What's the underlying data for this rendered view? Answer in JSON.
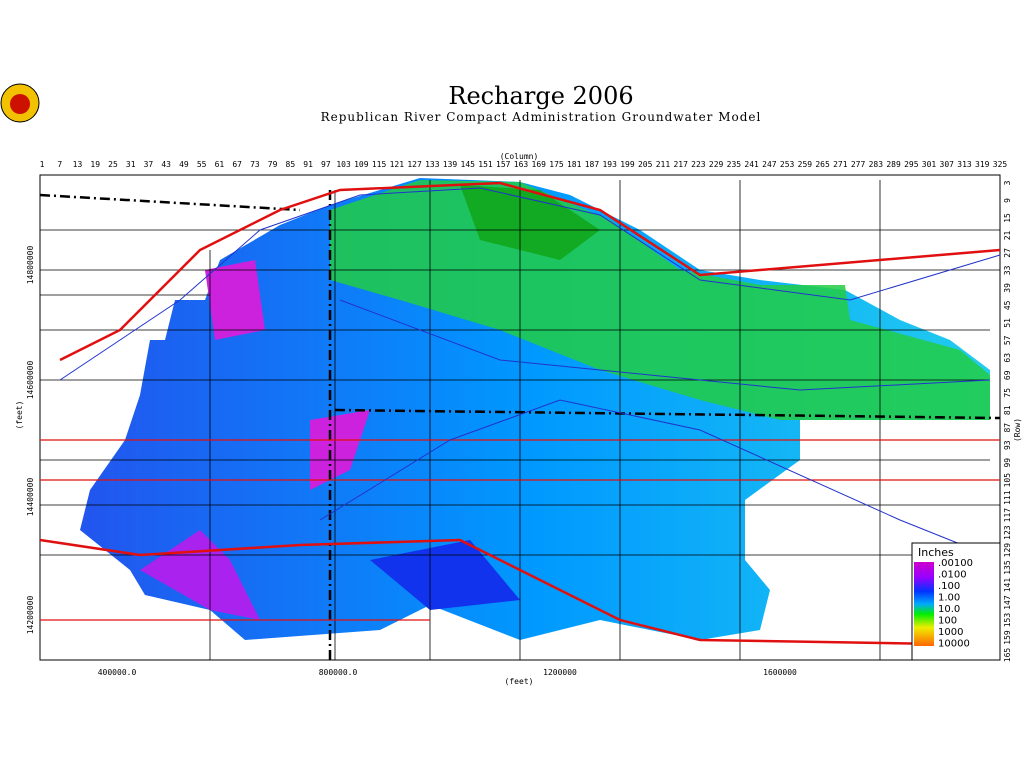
{
  "header": {
    "title": "Recharge 2006",
    "subtitle": "Republican River Compact Administration Groundwater Model"
  },
  "axes": {
    "column_label": "(Column)",
    "row_label": "(Row)",
    "x_label": "(feet)",
    "y_label": "(feet)",
    "column_ticks": [
      "1",
      "7",
      "13",
      "19",
      "25",
      "31",
      "37",
      "43",
      "49",
      "55",
      "61",
      "67",
      "73",
      "79",
      "85",
      "91",
      "97",
      "103",
      "109",
      "115",
      "121",
      "127",
      "133",
      "139",
      "145",
      "151",
      "157",
      "163",
      "169",
      "175",
      "181",
      "187",
      "193",
      "199",
      "205",
      "211",
      "217",
      "223",
      "229",
      "235",
      "241",
      "247",
      "253",
      "259",
      "265",
      "271",
      "277",
      "283",
      "289",
      "295",
      "301",
      "307",
      "313",
      "319",
      "325"
    ],
    "row_ticks": [
      "3",
      "9",
      "15",
      "21",
      "27",
      "33",
      "39",
      "45",
      "51",
      "57",
      "63",
      "69",
      "75",
      "81",
      "87",
      "93",
      "99",
      "105",
      "111",
      "117",
      "123",
      "129",
      "135",
      "141",
      "147",
      "153",
      "159",
      "165"
    ],
    "x_ticks": [
      "400000.0",
      "800000.0",
      "1200000",
      "1600000"
    ],
    "y_ticks": [
      "14800000",
      "14600000",
      "14400000",
      "14200000"
    ]
  },
  "legend": {
    "title": "Inches",
    "labels": [
      ".00100",
      ".0100",
      ".100",
      "1.00",
      "10.0",
      "100",
      "1000",
      "10000"
    ]
  }
}
